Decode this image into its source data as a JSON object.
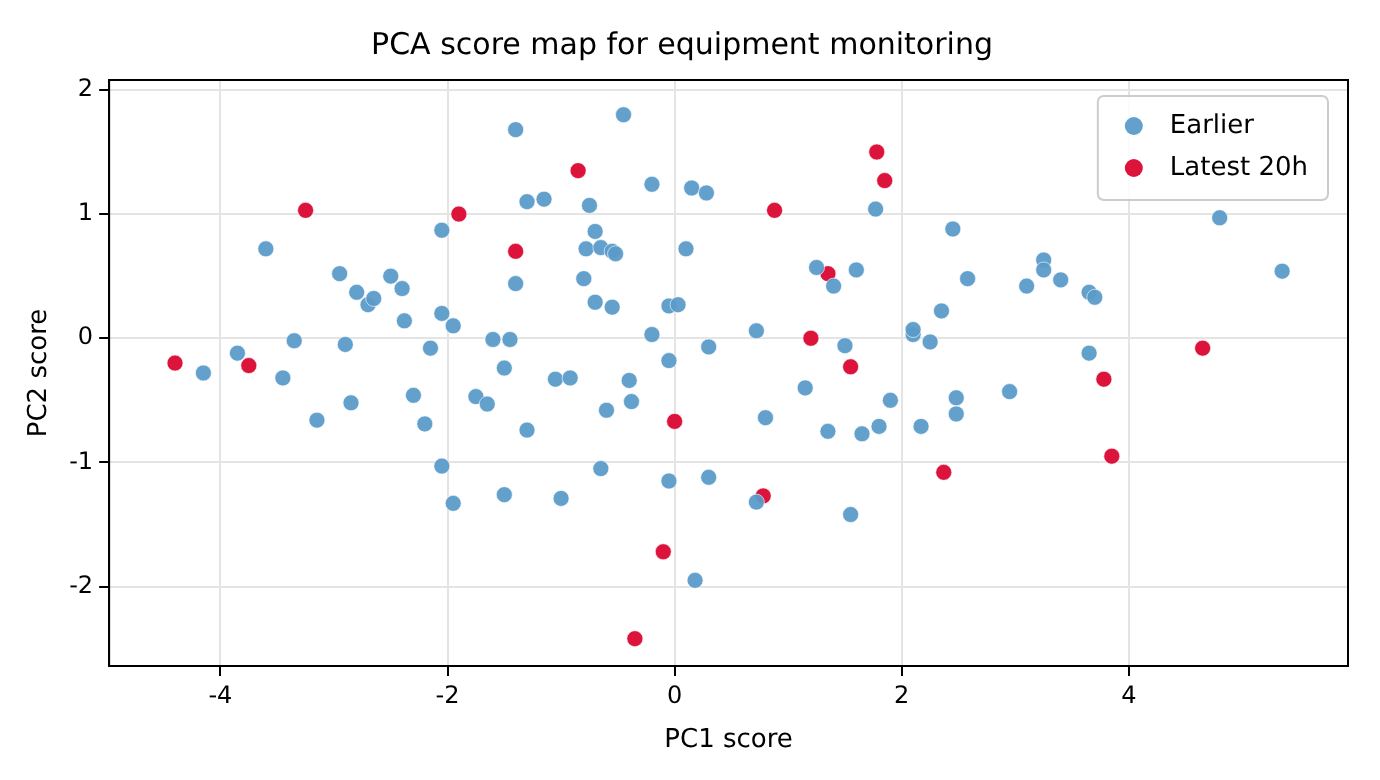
{
  "chart_data": {
    "type": "scatter",
    "title": "PCA score map for equipment monitoring",
    "xlabel": "PC1 score",
    "ylabel": "PC2 score",
    "xlim": [
      -4.98,
      5.93
    ],
    "ylim": [
      -2.64,
      2.08
    ],
    "xticks": [
      -4,
      -2,
      0,
      2,
      4
    ],
    "yticks": [
      -2,
      -1,
      0,
      1,
      2
    ],
    "grid": true,
    "legend": "top right",
    "marker": "circle",
    "series": [
      {
        "name": "Earlier",
        "color": "#5b9bc9",
        "x": [
          -4.15,
          -3.85,
          -3.6,
          -3.45,
          -3.35,
          -3.15,
          -2.95,
          -2.9,
          -2.85,
          -2.8,
          -2.7,
          -2.65,
          -2.5,
          -2.4,
          -2.38,
          -2.3,
          -2.2,
          -2.15,
          -2.05,
          -2.05,
          -2.05,
          -1.95,
          -1.95,
          -1.75,
          -1.65,
          -1.6,
          -1.5,
          -1.45,
          -1.5,
          -1.4,
          -1.4,
          -1.3,
          -1.3,
          -1.15,
          -1.05,
          -1.0,
          -0.92,
          -0.8,
          -0.78,
          -0.75,
          -0.7,
          -0.7,
          -0.65,
          -0.65,
          -0.6,
          -0.55,
          -0.52,
          -0.55,
          -0.45,
          -0.4,
          -0.38,
          -0.2,
          -0.2,
          -0.05,
          -0.05,
          -0.05,
          0.03,
          0.1,
          0.15,
          0.18,
          0.28,
          0.3,
          0.3,
          0.72,
          0.72,
          0.8,
          1.15,
          1.25,
          1.35,
          1.4,
          1.5,
          1.55,
          1.6,
          1.65,
          1.77,
          1.8,
          1.9,
          2.1,
          2.1,
          2.17,
          2.25,
          2.35,
          2.45,
          2.48,
          2.48,
          2.58,
          2.95,
          3.1,
          3.25,
          3.25,
          3.4,
          3.65,
          3.65,
          3.7,
          4.8,
          5.35
        ],
        "values": [
          -0.28,
          -0.12,
          0.72,
          -0.32,
          -0.02,
          -0.66,
          0.52,
          -0.05,
          -0.52,
          0.37,
          0.27,
          0.32,
          0.5,
          0.4,
          0.14,
          -0.46,
          -0.69,
          -0.08,
          0.87,
          0.2,
          -1.03,
          0.1,
          -1.33,
          -0.47,
          -0.53,
          -0.01,
          -0.24,
          -0.01,
          -1.26,
          0.44,
          1.68,
          -0.74,
          1.1,
          1.12,
          -0.33,
          -1.29,
          -0.32,
          0.48,
          0.72,
          1.07,
          0.86,
          0.29,
          0.73,
          -1.05,
          -0.58,
          0.7,
          0.68,
          0.25,
          1.8,
          -0.34,
          -0.51,
          1.24,
          0.03,
          -0.18,
          -1.15,
          0.26,
          0.27,
          0.72,
          1.21,
          -1.95,
          1.17,
          -1.12,
          -0.07,
          0.06,
          -1.32,
          -0.64,
          -0.4,
          0.57,
          -0.75,
          0.42,
          -0.06,
          -1.42,
          0.55,
          -0.77,
          1.04,
          -0.71,
          -0.5,
          0.03,
          0.07,
          -0.71,
          -0.03,
          0.22,
          0.88,
          -0.48,
          -0.61,
          0.48,
          -0.43,
          0.42,
          0.63,
          0.55,
          0.47,
          0.37,
          -0.12,
          0.33,
          0.97,
          0.54
        ]
      },
      {
        "name": "Latest 20h",
        "color": "#dc143c",
        "x": [
          -4.4,
          -3.75,
          -3.25,
          -1.9,
          -1.4,
          -0.85,
          0.88,
          1.78,
          1.85,
          1.35,
          1.2,
          1.55,
          0.0,
          0.78,
          -0.1,
          -0.35,
          2.37,
          3.78,
          3.85,
          4.65
        ],
        "values": [
          -0.2,
          -0.22,
          1.03,
          1.0,
          0.7,
          1.35,
          1.03,
          1.5,
          1.27,
          0.52,
          0.0,
          -0.23,
          -0.67,
          -1.27,
          -1.72,
          -2.42,
          -1.08,
          -0.33,
          -0.95,
          -0.08
        ]
      }
    ]
  }
}
